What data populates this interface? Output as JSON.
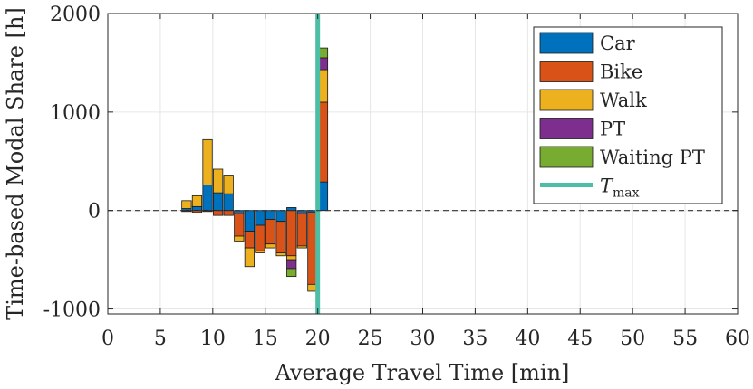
{
  "chart_data": {
    "type": "bar",
    "stacked": true,
    "title": "",
    "xlabel": "Average Travel Time [min]",
    "ylabel": "Time-based Modal Share [h]",
    "xlim": [
      0,
      60
    ],
    "ylim": [
      -1050,
      2000
    ],
    "xticks": [
      0,
      5,
      10,
      15,
      20,
      25,
      30,
      35,
      40,
      45,
      50,
      55,
      60
    ],
    "yticks": [
      -1000,
      0,
      1000,
      2000
    ],
    "ytick_labels": [
      "-1000",
      "0",
      "1000",
      "2000"
    ],
    "grid": true,
    "legend_position": "top-right",
    "bar_width": 0.9,
    "x": [
      7.5,
      8.5,
      9.5,
      10.5,
      11.5,
      12.5,
      13.5,
      14.5,
      15.5,
      16.5,
      17.5,
      18.5,
      19.5,
      20.5
    ],
    "series": [
      {
        "name": "Car",
        "color": "#0072BD",
        "values": [
          20,
          40,
          260,
          180,
          170,
          -30,
          -210,
          -150,
          -90,
          -110,
          30,
          -30,
          -20,
          290
        ]
      },
      {
        "name": "Bike",
        "color": "#D95319",
        "values": [
          -10,
          -20,
          -10,
          -50,
          -50,
          -230,
          -170,
          -260,
          -250,
          -320,
          -460,
          -330,
          -730,
          810
        ]
      },
      {
        "name": "Walk",
        "color": "#EDB120",
        "values": [
          80,
          110,
          460,
          240,
          190,
          -50,
          -190,
          -20,
          -40,
          -30,
          -40,
          -20,
          -70,
          330
        ]
      },
      {
        "name": "PT",
        "color": "#7E2F8E",
        "values": [
          0,
          0,
          0,
          0,
          0,
          0,
          0,
          0,
          0,
          0,
          -90,
          0,
          0,
          120
        ]
      },
      {
        "name": "Waiting PT",
        "color": "#77AC30",
        "values": [
          0,
          0,
          0,
          0,
          0,
          0,
          0,
          0,
          0,
          0,
          -80,
          0,
          0,
          100
        ]
      }
    ],
    "reference_lines": [
      {
        "type": "vertical",
        "x": 20,
        "name": "T",
        "subscript": "max",
        "color": "#4DBEA5"
      },
      {
        "type": "horizontal",
        "y": 0,
        "style": "dashed",
        "color": "#333333"
      }
    ]
  }
}
